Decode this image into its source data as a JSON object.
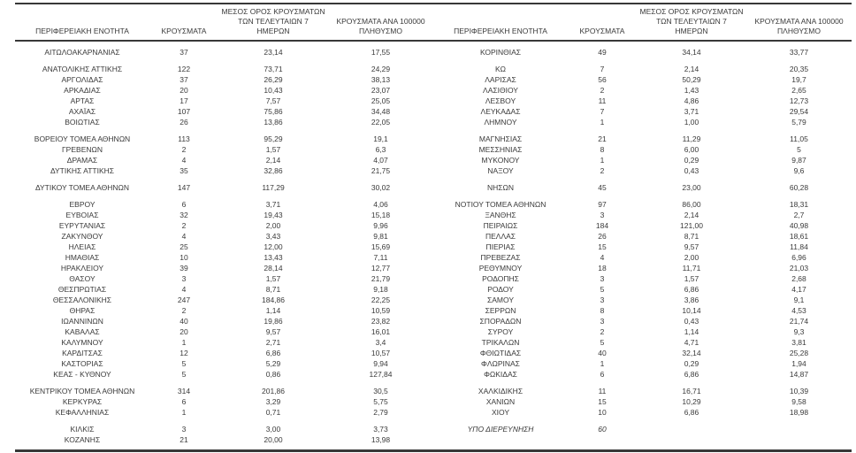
{
  "colors": {
    "text": "#3a3a3a",
    "rule": "#383838",
    "background": "#ffffff"
  },
  "table": {
    "headers": {
      "region": "ΠΕΡΙΦΕΡΕΙΑΚΗ ΕΝΟΤΗΤΑ",
      "cases": "ΚΡΟΥΣΜΑΤΑ",
      "avg7": "ΜΕΣΟΣ ΟΡΟΣ ΚΡΟΥΣΜΑΤΩΝ\nΤΩΝ ΤΕΛΕΥΤΑΙΩΝ 7\nΗΜΕΡΩΝ",
      "per100k": "ΚΡΟΥΣΜΑΤΑ ΑΝΑ 100000\nΠΛΗΘΥΣΜΟ"
    },
    "rows": [
      {
        "left": [
          "ΑΙΤΩΛΟΑΚΑΡΝΑΝΙΑΣ",
          "37",
          "23,14",
          "17,55"
        ],
        "right": [
          "ΚΟΡΙΝΘΙΑΣ",
          "49",
          "34,14",
          "33,77"
        ]
      },
      {
        "spacer": true
      },
      {
        "left": [
          "ΑΝΑΤΟΛΙΚΗΣ ΑΤΤΙΚΗΣ",
          "122",
          "73,71",
          "24,29"
        ],
        "right": [
          "ΚΩ",
          "7",
          "2,14",
          "20,35"
        ]
      },
      {
        "left": [
          "ΑΡΓΟΛΙΔΑΣ",
          "37",
          "26,29",
          "38,13"
        ],
        "right": [
          "ΛΑΡΙΣΑΣ",
          "56",
          "50,29",
          "19,7"
        ]
      },
      {
        "left": [
          "ΑΡΚΑΔΙΑΣ",
          "20",
          "10,43",
          "23,07"
        ],
        "right": [
          "ΛΑΣΙΘΙΟΥ",
          "2",
          "1,43",
          "2,65"
        ]
      },
      {
        "left": [
          "ΑΡΤΑΣ",
          "17",
          "7,57",
          "25,05"
        ],
        "right": [
          "ΛΕΣΒΟΥ",
          "11",
          "4,86",
          "12,73"
        ]
      },
      {
        "left": [
          "ΑΧΑΪΑΣ",
          "107",
          "75,86",
          "34,48"
        ],
        "right": [
          "ΛΕΥΚΑΔΑΣ",
          "7",
          "3,71",
          "29,54"
        ]
      },
      {
        "left": [
          "ΒΟΙΩΤΙΑΣ",
          "26",
          "13,86",
          "22,05"
        ],
        "right": [
          "ΛΗΜΝΟΥ",
          "1",
          "1,00",
          "5,79"
        ]
      },
      {
        "spacer": true
      },
      {
        "left": [
          "ΒΟΡΕΙΟΥ ΤΟΜΕΑ ΑΘΗΝΩΝ",
          "113",
          "95,29",
          "19,1"
        ],
        "right": [
          "ΜΑΓΝΗΣΙΑΣ",
          "21",
          "11,29",
          "11,05"
        ]
      },
      {
        "left": [
          "ΓΡΕΒΕΝΩΝ",
          "2",
          "1,57",
          "6,3"
        ],
        "right": [
          "ΜΕΣΣΗΝΙΑΣ",
          "8",
          "6,00",
          "5"
        ]
      },
      {
        "left": [
          "ΔΡΑΜΑΣ",
          "4",
          "2,14",
          "4,07"
        ],
        "right": [
          "ΜΥΚΟΝΟΥ",
          "1",
          "0,29",
          "9,87"
        ]
      },
      {
        "left": [
          "ΔΥΤΙΚΗΣ ΑΤΤΙΚΗΣ",
          "35",
          "32,86",
          "21,75"
        ],
        "right": [
          "ΝΑΞΟΥ",
          "2",
          "0,43",
          "9,6"
        ]
      },
      {
        "spacer": true
      },
      {
        "left": [
          "ΔΥΤΙΚΟΥ ΤΟΜΕΑ ΑΘΗΝΩΝ",
          "147",
          "117,29",
          "30,02"
        ],
        "right": [
          "ΝΗΣΩΝ",
          "45",
          "23,00",
          "60,28"
        ]
      },
      {
        "spacer": true
      },
      {
        "left": [
          "ΕΒΡΟΥ",
          "6",
          "3,71",
          "4,06"
        ],
        "right": [
          "ΝΟΤΙΟΥ ΤΟΜΕΑ ΑΘΗΝΩΝ",
          "97",
          "86,00",
          "18,31"
        ]
      },
      {
        "left": [
          "ΕΥΒΟΙΑΣ",
          "32",
          "19,43",
          "15,18"
        ],
        "right": [
          "ΞΑΝΘΗΣ",
          "3",
          "2,14",
          "2,7"
        ]
      },
      {
        "left": [
          "ΕΥΡΥΤΑΝΙΑΣ",
          "2",
          "2,00",
          "9,96"
        ],
        "right": [
          "ΠΕΙΡΑΙΩΣ",
          "184",
          "121,00",
          "40,98"
        ]
      },
      {
        "left": [
          "ΖΑΚΥΝΘΟΥ",
          "4",
          "3,43",
          "9,81"
        ],
        "right": [
          "ΠΕΛΛΑΣ",
          "26",
          "8,71",
          "18,61"
        ]
      },
      {
        "left": [
          "ΗΛΕΙΑΣ",
          "25",
          "12,00",
          "15,69"
        ],
        "right": [
          "ΠΙΕΡΙΑΣ",
          "15",
          "9,57",
          "11,84"
        ]
      },
      {
        "left": [
          "ΗΜΑΘΙΑΣ",
          "10",
          "13,43",
          "7,11"
        ],
        "right": [
          "ΠΡΕΒΕΖΑΣ",
          "4",
          "2,00",
          "6,96"
        ]
      },
      {
        "left": [
          "ΗΡΑΚΛΕΙΟΥ",
          "39",
          "28,14",
          "12,77"
        ],
        "right": [
          "ΡΕΘΥΜΝΟΥ",
          "18",
          "11,71",
          "21,03"
        ]
      },
      {
        "left": [
          "ΘΑΣΟΥ",
          "3",
          "1,57",
          "21,79"
        ],
        "right": [
          "ΡΟΔΟΠΗΣ",
          "3",
          "1,57",
          "2,68"
        ]
      },
      {
        "left": [
          "ΘΕΣΠΡΩΤΙΑΣ",
          "4",
          "8,71",
          "9,18"
        ],
        "right": [
          "ΡΟΔΟΥ",
          "5",
          "6,86",
          "4,17"
        ]
      },
      {
        "left": [
          "ΘΕΣΣΑΛΟΝΙΚΗΣ",
          "247",
          "184,86",
          "22,25"
        ],
        "right": [
          "ΣΑΜΟΥ",
          "3",
          "3,86",
          "9,1"
        ]
      },
      {
        "left": [
          "ΘΗΡΑΣ",
          "2",
          "1,14",
          "10,59"
        ],
        "right": [
          "ΣΕΡΡΩΝ",
          "8",
          "10,14",
          "4,53"
        ]
      },
      {
        "left": [
          "ΙΩΑΝΝΙΝΩΝ",
          "40",
          "19,86",
          "23,82"
        ],
        "right": [
          "ΣΠΟΡΑΔΩΝ",
          "3",
          "0,43",
          "21,74"
        ]
      },
      {
        "left": [
          "ΚΑΒΑΛΑΣ",
          "20",
          "9,57",
          "16,01"
        ],
        "right": [
          "ΣΥΡΟΥ",
          "2",
          "1,14",
          "9,3"
        ]
      },
      {
        "left": [
          "ΚΑΛΥΜΝΟΥ",
          "1",
          "2,71",
          "3,4"
        ],
        "right": [
          "ΤΡΙΚΑΛΩΝ",
          "5",
          "4,71",
          "3,81"
        ]
      },
      {
        "left": [
          "ΚΑΡΔΙΤΣΑΣ",
          "12",
          "6,86",
          "10,57"
        ],
        "right": [
          "ΦΘΙΩΤΙΔΑΣ",
          "40",
          "32,14",
          "25,28"
        ]
      },
      {
        "left": [
          "ΚΑΣΤΟΡΙΑΣ",
          "5",
          "5,29",
          "9,94"
        ],
        "right": [
          "ΦΛΩΡΙΝΑΣ",
          "1",
          "0,29",
          "1,94"
        ]
      },
      {
        "left": [
          "ΚΕΑΣ - ΚΥΘΝΟΥ",
          "5",
          "0,86",
          "127,84"
        ],
        "right": [
          "ΦΩΚΙΔΑΣ",
          "6",
          "6,86",
          "14,87"
        ]
      },
      {
        "spacer": true
      },
      {
        "left": [
          "ΚΕΝΤΡΙΚΟΥ ΤΟΜΕΑ ΑΘΗΝΩΝ",
          "314",
          "201,86",
          "30,5"
        ],
        "right": [
          "ΧΑΛΚΙΔΙΚΗΣ",
          "11",
          "16,71",
          "10,39"
        ]
      },
      {
        "left": [
          "ΚΕΡΚΥΡΑΣ",
          "6",
          "3,29",
          "5,75"
        ],
        "right": [
          "ΧΑΝΙΩΝ",
          "15",
          "10,29",
          "9,58"
        ]
      },
      {
        "left": [
          "ΚΕΦΑΛΛΗΝΙΑΣ",
          "1",
          "0,71",
          "2,79"
        ],
        "right": [
          "ΧΙΟΥ",
          "10",
          "6,86",
          "18,98"
        ]
      },
      {
        "spacer": true
      },
      {
        "left": [
          "ΚΙΛΚΙΣ",
          "3",
          "3,00",
          "3,73"
        ],
        "right": [
          "ΥΠΟ ΔΙΕΡΕΥΝΗΣΗ",
          "60",
          "",
          ""
        ],
        "right_italic": true
      },
      {
        "left": [
          "ΚΟΖΑΝΗΣ",
          "21",
          "20,00",
          "13,98"
        ],
        "right": null
      }
    ]
  }
}
